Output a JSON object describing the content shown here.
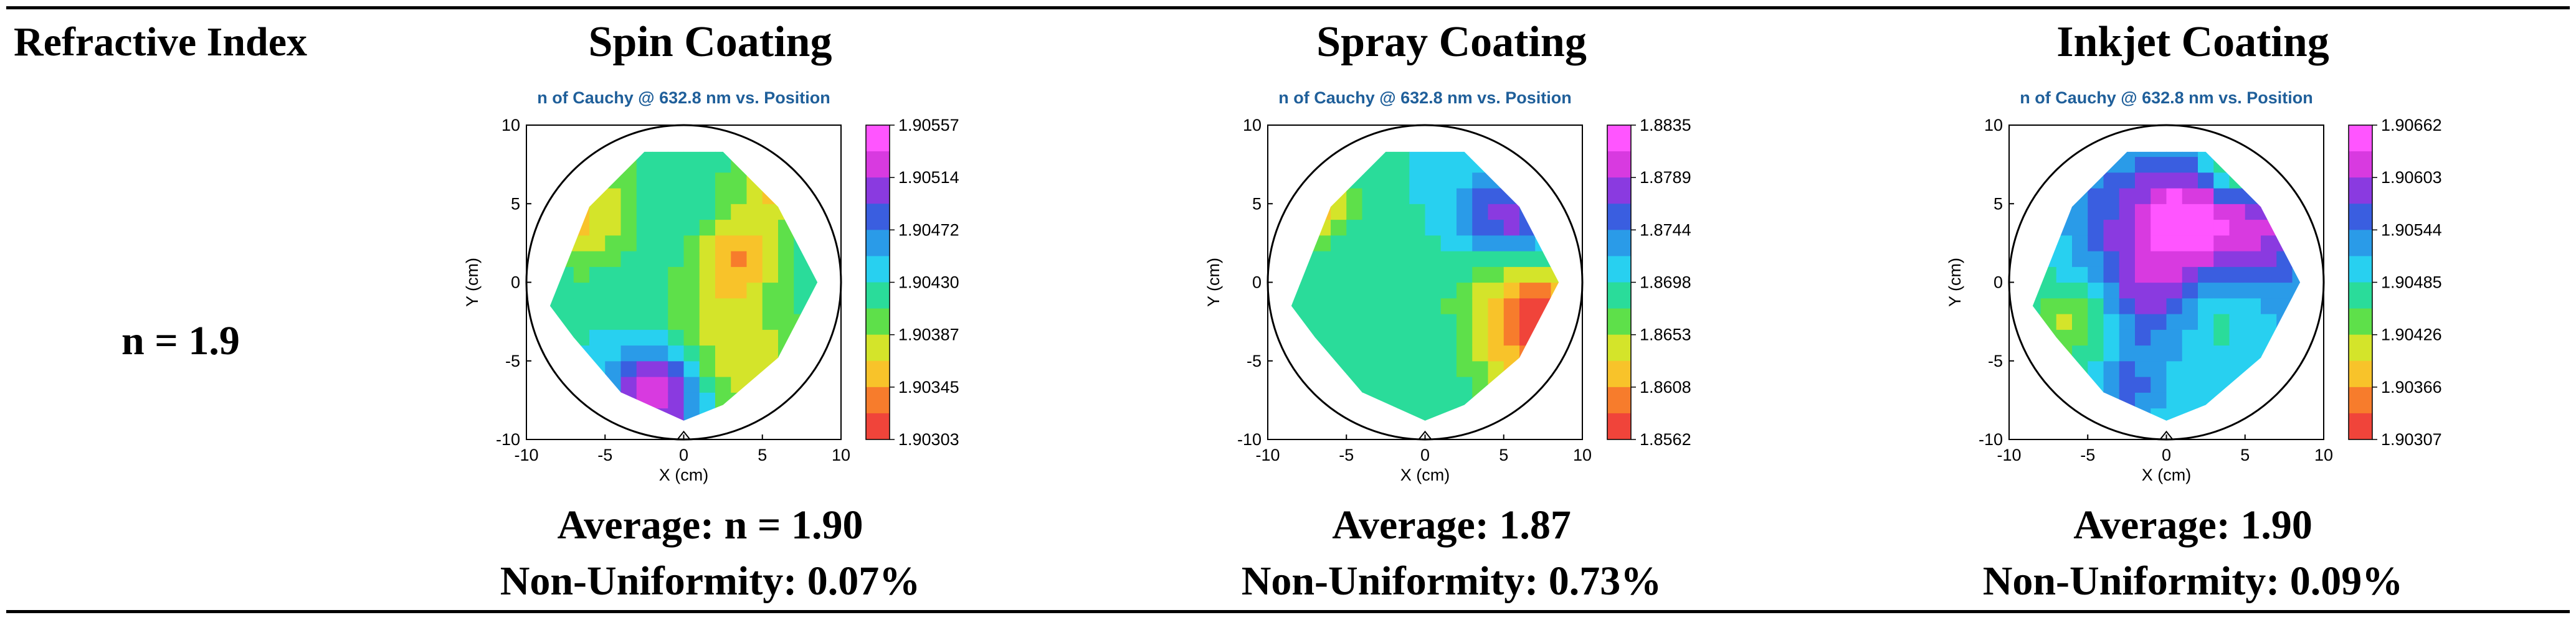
{
  "table": {
    "row_label": "Refractive Index",
    "row_value": "n = 1.9"
  },
  "plot_common": {
    "title": "n of Cauchy @ 632.8 nm vs. Position",
    "xlabel": "X (cm)",
    "ylabel": "Y (cm)",
    "ticks": [
      "-10",
      "-5",
      "0",
      "5",
      "10"
    ],
    "palette": [
      "#f0443a",
      "#f77c2c",
      "#f8c32a",
      "#d4e42a",
      "#5ee04a",
      "#2adc9a",
      "#28d0f0",
      "#2a9be8",
      "#3a5ee0",
      "#8a3ae0",
      "#d83ae0",
      "#ff55ff"
    ]
  },
  "columns": [
    {
      "title": "Spin Coating",
      "average": "Average: n = 1.90",
      "nonuniformity": "Non-Uniformity: 0.07%",
      "colorbar": [
        "1.90557",
        "1.90514",
        "1.90472",
        "1.90430",
        "1.90387",
        "1.90345",
        "1.90303"
      ]
    },
    {
      "title": "Spray Coating",
      "average": "Average: 1.87",
      "nonuniformity": "Non-Uniformity: 0.73%",
      "colorbar": [
        "1.8835",
        "1.8789",
        "1.8744",
        "1.8698",
        "1.8653",
        "1.8608",
        "1.8562"
      ]
    },
    {
      "title": "Inkjet Coating",
      "average": "Average: 1.90",
      "nonuniformity": "Non-Uniformity: 0.09%",
      "colorbar": [
        "1.90662",
        "1.90603",
        "1.90544",
        "1.90485",
        "1.90426",
        "1.90366",
        "1.90307"
      ]
    }
  ]
}
